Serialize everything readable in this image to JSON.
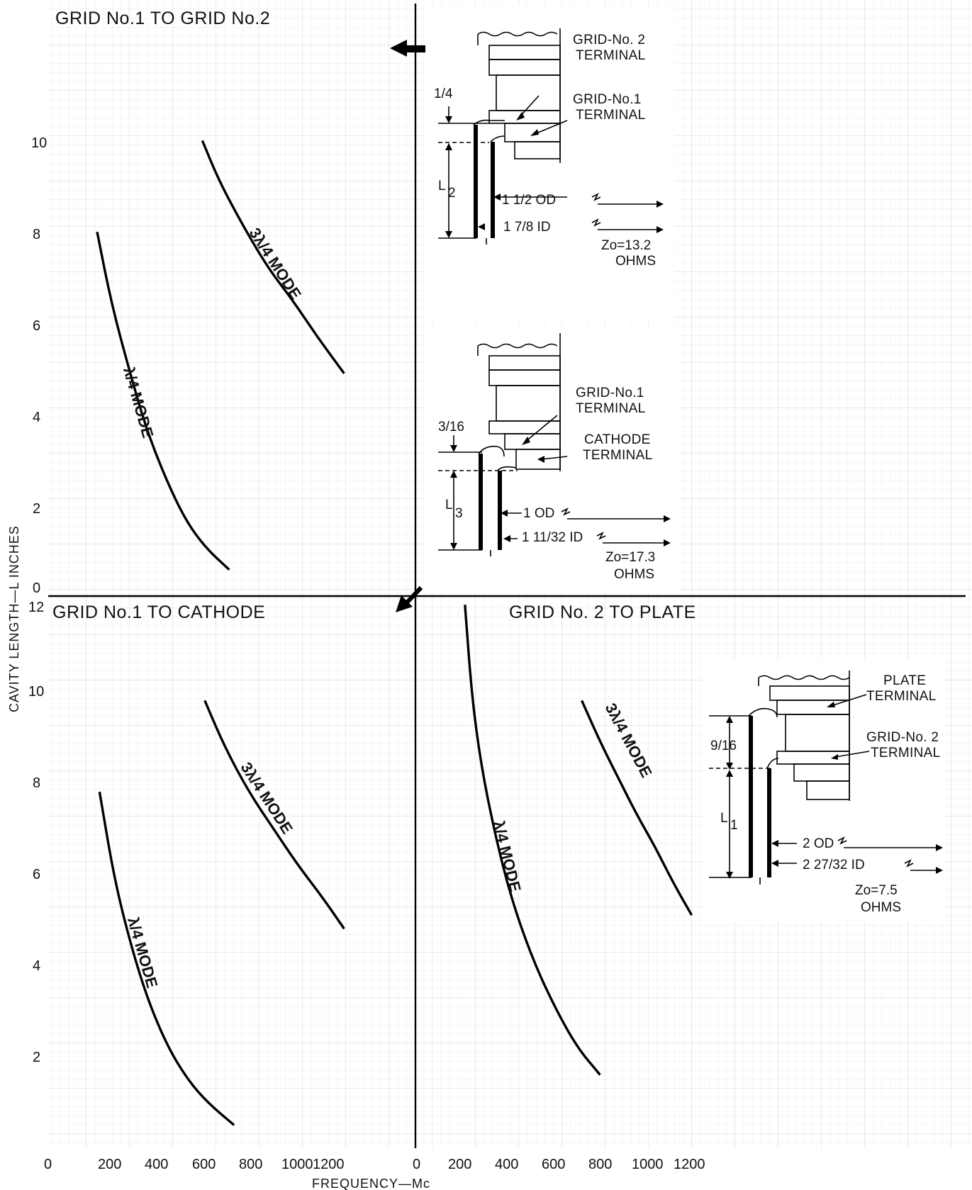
{
  "chart_data": {
    "type": "line",
    "xlabel": "FREQUENCY—Mc",
    "ylabel": "CAVITY LENGTH—L INCHES",
    "panels": [
      {
        "id": "upper_left",
        "title": "GRID No.1 TO GRID No.2",
        "xlim": [
          0,
          1300
        ],
        "ylim": [
          0,
          11
        ],
        "y_ticks": [
          "10",
          "8",
          "6",
          "4",
          "2",
          "0"
        ],
        "series": [
          {
            "name": "λ/4 MODE",
            "x": [
              200,
              260,
              330,
              400,
              480,
              560,
              640,
              740
            ],
            "y": [
              7.9,
              6.3,
              4.9,
              3.6,
              2.5,
              1.6,
              1.0,
              0.5
            ]
          },
          {
            "name": "3λ/4 MODE",
            "x": [
              630,
              700,
              800,
              900,
              1000,
              1100,
              1210
            ],
            "y": [
              9.9,
              9.0,
              8.0,
              7.1,
              6.4,
              5.6,
              4.8
            ]
          }
        ],
        "diagram": {
          "terminals": [
            "GRID-No. 2",
            "TERMINAL",
            "GRID-No.1",
            "TERMINAL"
          ],
          "dim_top": "1/4",
          "length": "L",
          "length_sub": "2",
          "od": "1 1/2 OD",
          "id_": "1 7/8 ID",
          "zo": "Zo=13.2",
          "unit": "OHMS"
        }
      },
      {
        "id": "center_diagram",
        "diagram": {
          "terminals": [
            "GRID-No.1",
            "TERMINAL",
            "CATHODE",
            "TERMINAL"
          ],
          "dim_top": "3/16",
          "length": "L",
          "length_sub": "3",
          "od": "1 OD",
          "id_": "1 11/32 ID",
          "zo": "Zo=17.3",
          "unit": "OHMS"
        }
      },
      {
        "id": "lower_left",
        "title": "GRID No.1 TO CATHODE",
        "xlim": [
          0,
          1300
        ],
        "ylim": [
          0,
          12
        ],
        "y_ticks": [
          "12",
          "10",
          "8",
          "6",
          "4",
          "2"
        ],
        "x_ticks": [
          "0",
          "200",
          "400",
          "600",
          "800",
          "1000",
          "1200"
        ],
        "series": [
          {
            "name": "λ/4 MODE",
            "x": [
              210,
              270,
              340,
              410,
              490,
              570,
              650,
              760
            ],
            "y": [
              7.9,
              6.0,
              4.5,
              3.3,
              2.3,
              1.6,
              1.1,
              0.6
            ]
          },
          {
            "name": "3λ/4 MODE",
            "x": [
              640,
              720,
              820,
              920,
              1020,
              1120,
              1210
            ],
            "y": [
              9.9,
              8.9,
              7.9,
              7.1,
              6.3,
              5.6,
              4.9
            ]
          }
        ]
      },
      {
        "id": "lower_right",
        "title": "GRID No. 2 TO PLATE",
        "xlim": [
          0,
          1300
        ],
        "ylim": [
          0,
          12
        ],
        "x_ticks": [
          "0",
          "200",
          "400",
          "600",
          "800",
          "1000",
          "1200"
        ],
        "series": [
          {
            "name": "λ/4 MODE",
            "x": [
              210,
              240,
              280,
              340,
              410,
              500,
              600,
              700,
              800
            ],
            "y": [
              12.0,
              10.0,
              8.5,
              7.0,
              5.6,
              4.3,
              3.2,
              2.3,
              1.7
            ]
          },
          {
            "name": "3λ/4 MODE",
            "x": [
              720,
              800,
              880,
              960,
              1040,
              1120,
              1200
            ],
            "y": [
              9.9,
              9.0,
              8.2,
              7.4,
              6.7,
              5.9,
              5.2
            ]
          }
        ],
        "diagram": {
          "terminals": [
            "PLATE",
            "TERMINAL",
            "GRID-No. 2",
            "TERMINAL"
          ],
          "dim_top": "9/16",
          "length": "L",
          "length_sub": "1",
          "od": "2 OD",
          "id_": "2 27/32 ID",
          "zo": "Zo=7.5",
          "unit": "OHMS"
        }
      }
    ]
  }
}
